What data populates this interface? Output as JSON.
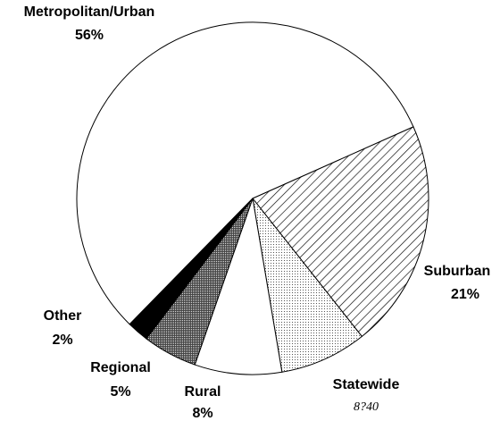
{
  "chart_data": {
    "type": "pie",
    "categories": [
      "Metropolitan/Urban",
      "Suburban",
      "Statewide",
      "Rural",
      "Regional",
      "Other"
    ],
    "values": [
      56,
      21,
      8,
      8,
      5,
      2
    ],
    "value_labels": [
      "56%",
      "21%",
      "8?40",
      "8%",
      "5%",
      "2%"
    ],
    "colors": [
      "#ffffff",
      "url(#hatch)",
      "url(#light-dots)",
      "#ffffff",
      "url(#dark-dots)",
      "#000000"
    ]
  }
}
